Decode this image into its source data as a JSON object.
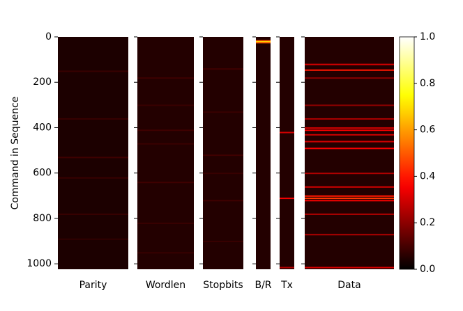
{
  "chart_data": {
    "type": "heatmap",
    "y_label": "Command in Sequence",
    "ylim": [
      0,
      1024
    ],
    "yticks": [
      0,
      200,
      400,
      600,
      800,
      1000
    ],
    "colorbar": {
      "colormap": "hot",
      "lim": [
        0,
        1
      ],
      "ticks": [
        {
          "value": 0,
          "label": "0.0"
        },
        {
          "value": 0.2,
          "label": "0.2"
        },
        {
          "value": 0.4,
          "label": "0.4"
        },
        {
          "value": 0.6,
          "label": "0.6"
        },
        {
          "value": 0.8,
          "label": "0.8"
        },
        {
          "value": 1,
          "label": "1.0"
        }
      ]
    },
    "panels": [
      {
        "name": "Parity",
        "base": 0.04,
        "rows": [
          150,
          360,
          530,
          620,
          780,
          890
        ],
        "values": [
          0.08,
          0.08,
          0.09,
          0.08,
          0.08,
          0.07
        ]
      },
      {
        "name": "Wordlen",
        "base": 0.05,
        "rows": [
          180,
          300,
          410,
          470,
          640,
          820,
          950
        ],
        "values": [
          0.09,
          0.08,
          0.09,
          0.08,
          0.09,
          0.08,
          0.08
        ]
      },
      {
        "name": "Stopbits",
        "base": 0.05,
        "rows": [
          140,
          330,
          520,
          600,
          720,
          900
        ],
        "values": [
          0.09,
          0.08,
          0.09,
          0.08,
          0.09,
          0.08
        ]
      },
      {
        "name": "B/R",
        "base": 0.05,
        "rows": [
          16,
          20,
          24
        ],
        "values": [
          0.5,
          0.7,
          0.5
        ]
      },
      {
        "name": "Tx",
        "base": 0.05,
        "rows": [
          420,
          710,
          1015
        ],
        "values": [
          0.3,
          0.35,
          0.25
        ]
      },
      {
        "name": "Data",
        "base": 0.05,
        "rows": [
          120,
          145,
          180,
          300,
          360,
          400,
          410,
          430,
          460,
          490,
          600,
          660,
          700,
          710,
          720,
          780,
          870,
          1015
        ],
        "values": [
          0.3,
          0.4,
          0.2,
          0.2,
          0.25,
          0.3,
          0.35,
          0.3,
          0.3,
          0.35,
          0.25,
          0.3,
          0.4,
          0.45,
          0.35,
          0.25,
          0.25,
          0.3
        ]
      }
    ]
  }
}
